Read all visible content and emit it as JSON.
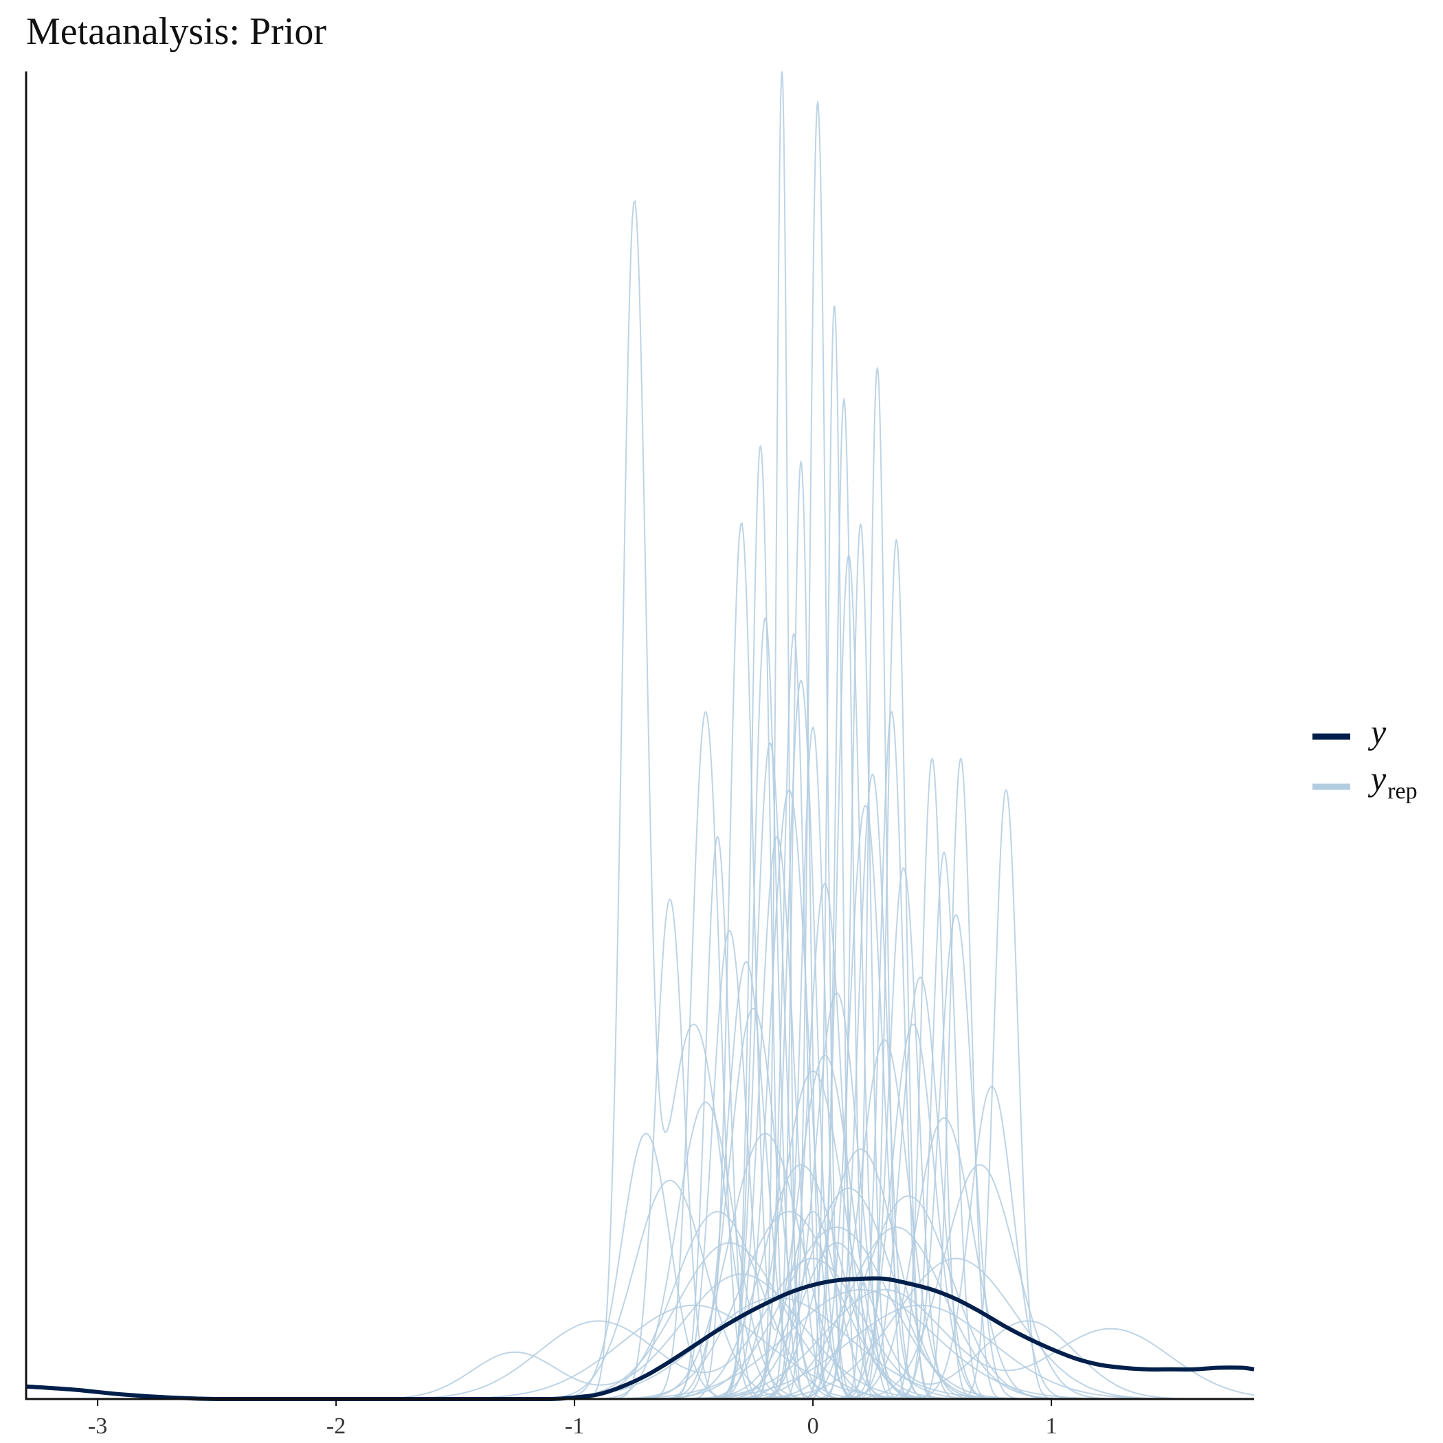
{
  "chart_data": {
    "type": "line",
    "title": "Metaanalysis: Prior",
    "xlabel": "",
    "ylabel": "",
    "xlim": [
      -3.3,
      1.85
    ],
    "ylim": [
      0,
      8.5
    ],
    "x_ticks": [
      -3,
      -2,
      -1,
      0,
      1
    ],
    "x_tick_labels": [
      "-3",
      "-2",
      "-1",
      "0",
      "1"
    ],
    "y_axis_ticks": "none",
    "grid": false,
    "legend_position": "right",
    "legend": [
      {
        "label": "y",
        "subscript": "",
        "color": "#011f4b"
      },
      {
        "label": "y",
        "subscript": "rep",
        "color": "#b3cde0"
      }
    ],
    "colors": {
      "y": "#011f4b",
      "y_rep": "#b3cde0",
      "axis": "#111111"
    },
    "series": [
      {
        "name": "y",
        "x": [
          -3.3,
          -3.1,
          -2.9,
          -2.7,
          -2.5,
          -2.2,
          -1.9,
          -1.6,
          -1.3,
          -1.1,
          -1.0,
          -0.9,
          -0.8,
          -0.7,
          -0.6,
          -0.5,
          -0.4,
          -0.3,
          -0.2,
          -0.1,
          0.0,
          0.1,
          0.2,
          0.3,
          0.4,
          0.5,
          0.6,
          0.7,
          0.8,
          0.9,
          1.0,
          1.1,
          1.2,
          1.3,
          1.4,
          1.5,
          1.6,
          1.7,
          1.8,
          1.85
        ],
        "y": [
          0.08,
          0.06,
          0.03,
          0.01,
          0.0,
          0.0,
          0.0,
          0.0,
          0.0,
          0.0,
          0.01,
          0.03,
          0.08,
          0.15,
          0.24,
          0.34,
          0.44,
          0.53,
          0.61,
          0.68,
          0.73,
          0.76,
          0.77,
          0.77,
          0.74,
          0.7,
          0.64,
          0.56,
          0.47,
          0.39,
          0.32,
          0.26,
          0.22,
          0.2,
          0.19,
          0.19,
          0.19,
          0.2,
          0.2,
          0.19
        ]
      },
      {
        "name": "y_rep",
        "components": [
          {
            "peaks": [
              [
                -0.75,
                0.05,
                7.4
              ],
              [
                -0.5,
                0.12,
                2.4
              ]
            ]
          },
          {
            "peaks": [
              [
                -0.13,
                0.025,
                8.5
              ]
            ]
          },
          {
            "peaks": [
              [
                0.02,
                0.035,
                8.3
              ]
            ]
          },
          {
            "peaks": [
              [
                0.09,
                0.03,
                7.0
              ]
            ]
          },
          {
            "peaks": [
              [
                0.27,
                0.035,
                6.6
              ]
            ]
          },
          {
            "peaks": [
              [
                -0.3,
                0.05,
                5.6
              ],
              [
                0.0,
                0.1,
                1.2
              ]
            ]
          },
          {
            "peaks": [
              [
                0.35,
                0.04,
                5.5
              ]
            ]
          },
          {
            "peaks": [
              [
                0.5,
                0.045,
                4.1
              ]
            ]
          },
          {
            "peaks": [
              [
                0.62,
                0.045,
                4.1
              ]
            ]
          },
          {
            "peaks": [
              [
                0.81,
                0.05,
                3.9
              ]
            ]
          },
          {
            "peaks": [
              [
                -0.45,
                0.06,
                4.4
              ]
            ]
          },
          {
            "peaks": [
              [
                -0.6,
                0.06,
                3.2
              ]
            ]
          },
          {
            "peaks": [
              [
                -0.2,
                0.05,
                5.0
              ]
            ]
          },
          {
            "peaks": [
              [
                0.15,
                0.05,
                5.4
              ]
            ]
          },
          {
            "peaks": [
              [
                -0.05,
                0.06,
                4.6
              ]
            ]
          },
          {
            "peaks": [
              [
                0.38,
                0.06,
                3.4
              ]
            ]
          },
          {
            "peaks": [
              [
                0.6,
                0.07,
                3.1
              ]
            ]
          },
          {
            "peaks": [
              [
                -0.35,
                0.07,
                3.0
              ]
            ]
          },
          {
            "peaks": [
              [
                -0.15,
                0.07,
                3.6
              ]
            ]
          },
          {
            "peaks": [
              [
                0.05,
                0.07,
                3.3
              ]
            ]
          },
          {
            "peaks": [
              [
                0.22,
                0.07,
                3.8
              ]
            ]
          },
          {
            "peaks": [
              [
                0.45,
                0.08,
                2.7
              ]
            ]
          },
          {
            "peaks": [
              [
                -0.1,
                0.08,
                3.9
              ]
            ]
          },
          {
            "peaks": [
              [
                0.1,
                0.09,
                2.6
              ]
            ]
          },
          {
            "peaks": [
              [
                -0.25,
                0.1,
                2.5
              ]
            ]
          },
          {
            "peaks": [
              [
                0.3,
                0.1,
                2.3
              ]
            ]
          },
          {
            "peaks": [
              [
                -0.45,
                0.12,
                1.9
              ]
            ]
          },
          {
            "peaks": [
              [
                0.55,
                0.12,
                1.8
              ]
            ]
          },
          {
            "peaks": [
              [
                0.0,
                0.13,
                2.1
              ]
            ]
          },
          {
            "peaks": [
              [
                -0.2,
                0.15,
                1.7
              ]
            ]
          },
          {
            "peaks": [
              [
                0.2,
                0.15,
                1.6
              ]
            ]
          },
          {
            "peaks": [
              [
                0.7,
                0.15,
                1.5
              ]
            ]
          },
          {
            "peaks": [
              [
                -0.6,
                0.15,
                1.4
              ]
            ]
          },
          {
            "peaks": [
              [
                0.4,
                0.18,
                1.3
              ]
            ]
          },
          {
            "peaks": [
              [
                -0.1,
                0.2,
                1.2
              ]
            ]
          },
          {
            "peaks": [
              [
                0.1,
                0.22,
                1.1
              ]
            ]
          },
          {
            "peaks": [
              [
                -0.35,
                0.22,
                1.0
              ]
            ]
          },
          {
            "peaks": [
              [
                0.6,
                0.25,
                0.9
              ]
            ]
          },
          {
            "peaks": [
              [
                -1.25,
                0.18,
                0.3
              ],
              [
                -0.3,
                0.25,
                0.8
              ]
            ]
          },
          {
            "peaks": [
              [
                1.25,
                0.25,
                0.45
              ],
              [
                0.3,
                0.25,
                0.7
              ]
            ]
          },
          {
            "peaks": [
              [
                -0.9,
                0.25,
                0.5
              ],
              [
                0.0,
                0.2,
                0.9
              ]
            ]
          },
          {
            "peaks": [
              [
                0.2,
                0.3,
                0.7
              ]
            ]
          },
          {
            "peaks": [
              [
                -0.15,
                0.3,
                0.65
              ]
            ]
          },
          {
            "peaks": [
              [
                0.45,
                0.3,
                0.6
              ]
            ]
          },
          {
            "peaks": [
              [
                -0.5,
                0.3,
                0.6
              ]
            ]
          },
          {
            "peaks": [
              [
                0.9,
                0.2,
                0.5
              ],
              [
                0.1,
                0.15,
                1.0
              ]
            ]
          },
          {
            "peaks": [
              [
                -0.05,
                0.035,
                6.0
              ]
            ]
          },
          {
            "peaks": [
              [
                0.13,
                0.035,
                6.4
              ]
            ]
          },
          {
            "peaks": [
              [
                -0.22,
                0.04,
                6.1
              ]
            ]
          },
          {
            "peaks": [
              [
                0.2,
                0.04,
                5.6
              ]
            ]
          },
          {
            "peaks": [
              [
                -0.08,
                0.045,
                4.9
              ]
            ]
          },
          {
            "peaks": [
              [
                0.33,
                0.05,
                4.4
              ]
            ]
          },
          {
            "peaks": [
              [
                -0.4,
                0.05,
                3.6
              ]
            ]
          },
          {
            "peaks": [
              [
                0.55,
                0.05,
                3.5
              ]
            ]
          },
          {
            "peaks": [
              [
                -0.18,
                0.06,
                4.2
              ]
            ]
          },
          {
            "peaks": [
              [
                0.25,
                0.06,
                4.0
              ]
            ]
          },
          {
            "peaks": [
              [
                0.0,
                0.05,
                4.3
              ]
            ]
          },
          {
            "peaks": [
              [
                -0.28,
                0.08,
                2.8
              ]
            ]
          },
          {
            "peaks": [
              [
                0.42,
                0.09,
                2.4
              ]
            ]
          },
          {
            "peaks": [
              [
                0.75,
                0.09,
                2.0
              ]
            ]
          },
          {
            "peaks": [
              [
                -0.7,
                0.1,
                1.7
              ]
            ]
          },
          {
            "peaks": [
              [
                0.05,
                0.11,
                2.2
              ]
            ]
          },
          {
            "peaks": [
              [
                -0.05,
                0.16,
                1.5
              ]
            ]
          },
          {
            "peaks": [
              [
                0.15,
                0.18,
                1.35
              ]
            ]
          },
          {
            "peaks": [
              [
                0.35,
                0.2,
                1.1
              ]
            ]
          },
          {
            "peaks": [
              [
                -0.4,
                0.18,
                1.2
              ]
            ]
          }
        ]
      }
    ]
  }
}
